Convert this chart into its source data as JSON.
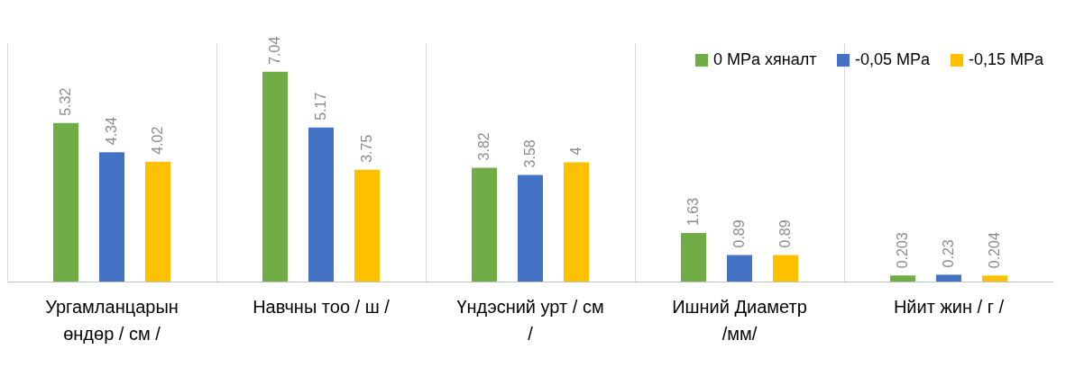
{
  "chart_data": {
    "type": "bar",
    "categories": [
      "Ургамланцарын өндөр / см /",
      "Навчны тоо / ш /",
      "Үндэсний урт / см /",
      "Ишний Диаметр /мм/",
      "Нйит жин  / г /"
    ],
    "series": [
      {
        "name": "0 MPa хяналт",
        "color": "#70ad47",
        "values": [
          5.32,
          7.04,
          3.82,
          1.63,
          0.203
        ]
      },
      {
        "name": "-0,05 MPa",
        "color": "#4472c4",
        "values": [
          4.34,
          5.17,
          3.58,
          0.89,
          0.23
        ]
      },
      {
        "name": "-0,15 MPa",
        "color": "#ffc000",
        "values": [
          4.02,
          3.75,
          4,
          0.89,
          0.204
        ]
      }
    ],
    "data_labels": true,
    "grid": "x",
    "legend": "top right",
    "tick_labels": "x"
  }
}
